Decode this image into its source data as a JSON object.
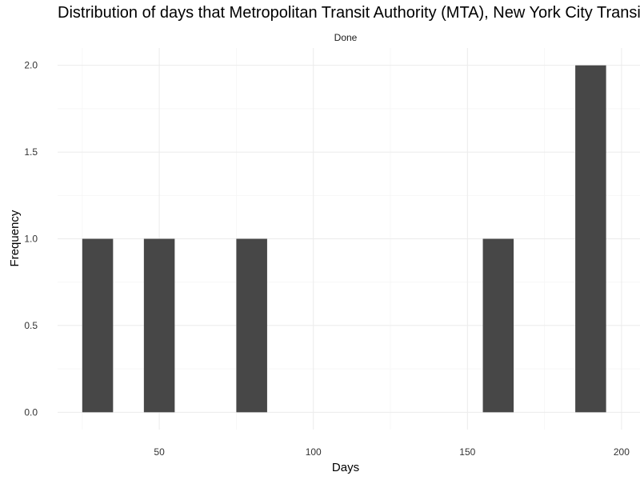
{
  "chart_data": {
    "type": "bar",
    "title": "Distribution of days that Metropolitan Transit Authority (MTA), New York City Transit Authority",
    "facet": "Done",
    "xlabel": "Days",
    "ylabel": "Frequency",
    "bin_width": 10,
    "bins": [
      {
        "x_start": 25,
        "x_end": 35,
        "value": 1
      },
      {
        "x_start": 45,
        "x_end": 55,
        "value": 1
      },
      {
        "x_start": 75,
        "x_end": 85,
        "value": 1
      },
      {
        "x_start": 155,
        "x_end": 165,
        "value": 1
      },
      {
        "x_start": 185,
        "x_end": 195,
        "value": 2
      }
    ],
    "xlim": [
      17,
      206
    ],
    "ylim": [
      -0.1,
      2.1
    ],
    "x_ticks": [
      50,
      100,
      150,
      200
    ],
    "x_tick_labels": [
      "50",
      "100",
      "150",
      "200"
    ],
    "y_ticks": [
      0,
      0.5,
      1,
      1.5,
      2
    ],
    "y_tick_labels": [
      "0.0",
      "0.5",
      "1.0",
      "1.5",
      "2.0"
    ],
    "grid": true,
    "bar_color": "#474747"
  }
}
